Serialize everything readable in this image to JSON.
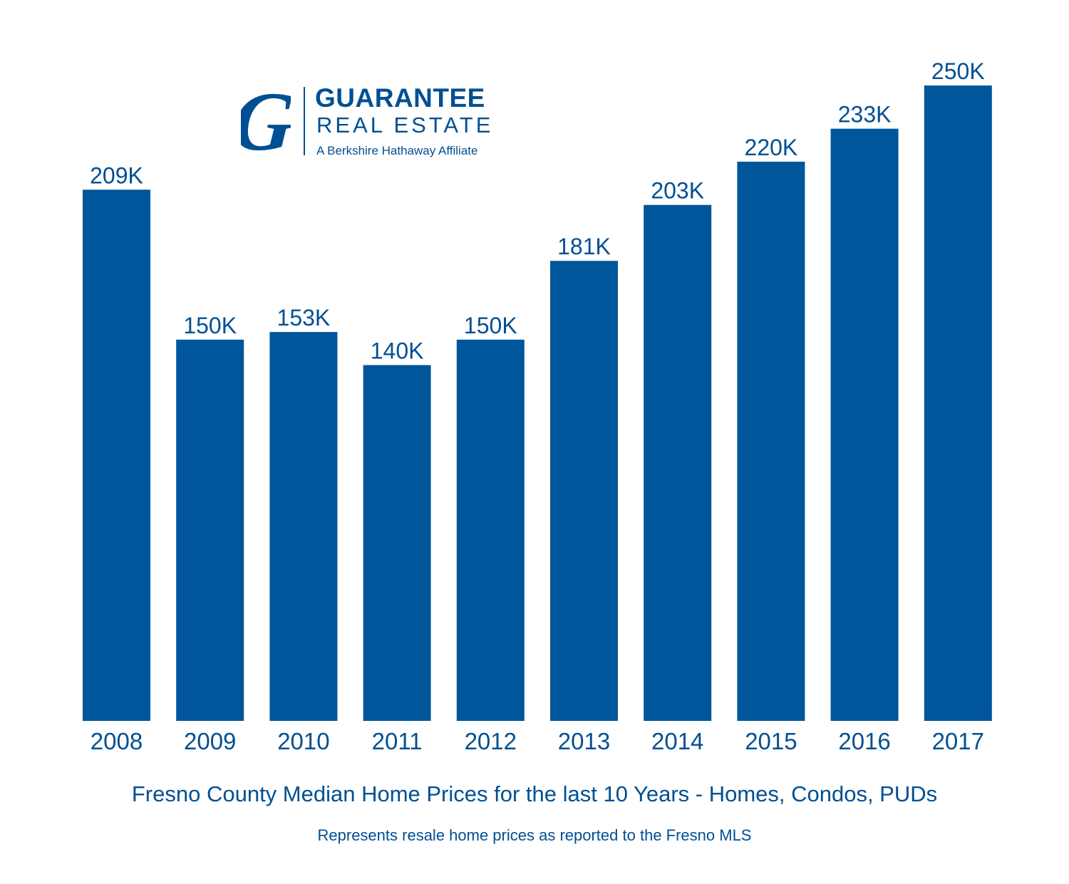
{
  "colors": {
    "bar": "#00569a",
    "text": "#004f93",
    "background": "#ffffff"
  },
  "logo": {
    "mark": "G",
    "line1": "GUARANTEE",
    "line2": "REAL ESTATE",
    "line3": "A Berkshire Hathaway Affiliate"
  },
  "chart_data": {
    "type": "bar",
    "title": "Fresno County Median Home Prices for the last 10 Years - Homes, Condos, PUDs",
    "subtitle": "Represents resale home prices as reported to the Fresno MLS",
    "xlabel": "",
    "ylabel": "",
    "categories": [
      "2008",
      "2009",
      "2010",
      "2011",
      "2012",
      "2013",
      "2014",
      "2015",
      "2016",
      "2017"
    ],
    "values": [
      209,
      150,
      153,
      140,
      150,
      181,
      203,
      220,
      233,
      250
    ],
    "data_labels": [
      "209K",
      "150K",
      "153K",
      "140K",
      "150K",
      "181K",
      "203K",
      "220K",
      "233K",
      "250K"
    ],
    "unit": "K",
    "ylim": [
      0,
      250
    ],
    "grid": false,
    "legend": "none"
  }
}
